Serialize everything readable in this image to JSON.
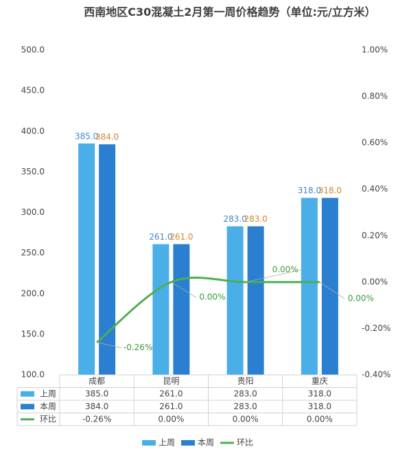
{
  "chart_data": {
    "type": "bar",
    "title": "西南地区C30混凝土2月第一周价格趋势（单位:元/立方米）",
    "categories": [
      "成都",
      "昆明",
      "贵阳",
      "重庆"
    ],
    "series": [
      {
        "name": "上周",
        "color": "#4aaee8",
        "label_color": "#3f86c8",
        "values": [
          385,
          261,
          283,
          318
        ],
        "value_labels": [
          "385.0",
          "261.0",
          "283.0",
          "318.0"
        ]
      },
      {
        "name": "本周",
        "color": "#2b7fd0",
        "label_color": "#d9822b",
        "values": [
          384,
          261,
          283,
          318
        ],
        "value_labels": [
          "384.0",
          "261.0",
          "283.0",
          "318.0"
        ]
      },
      {
        "name": "环比",
        "color": "#4caf50",
        "label_color": "#3a9a3e",
        "type": "line",
        "axis": "y2",
        "values": [
          -0.26,
          0,
          0,
          0
        ],
        "value_labels": [
          "-0.26%",
          "0.00%",
          "0.00%",
          "0.00%"
        ]
      }
    ],
    "ylim": [
      100,
      500
    ],
    "yticks": [
      {
        "value": 100,
        "label": "100.0"
      },
      {
        "value": 150,
        "label": "150.0"
      },
      {
        "value": 200,
        "label": "200.0"
      },
      {
        "value": 250,
        "label": "250.0"
      },
      {
        "value": 300,
        "label": "300.0"
      },
      {
        "value": 350,
        "label": "350.0"
      },
      {
        "value": 400,
        "label": "400.0"
      },
      {
        "value": 450,
        "label": "450.0"
      },
      {
        "value": 500,
        "label": "500.0"
      }
    ],
    "y2lim": [
      -0.4,
      1.0
    ],
    "y2ticks": [
      {
        "value": -0.4,
        "label": "-0.40%"
      },
      {
        "value": -0.2,
        "label": "-0.20%"
      },
      {
        "value": 0,
        "label": "0.00%"
      },
      {
        "value": 0.2,
        "label": "0.20%"
      },
      {
        "value": 0.4,
        "label": "0.40%"
      },
      {
        "value": 0.6,
        "label": "0.60%"
      },
      {
        "value": 0.8,
        "label": "0.80%"
      },
      {
        "value": 1.0,
        "label": "1.00%"
      }
    ],
    "grid": false
  }
}
